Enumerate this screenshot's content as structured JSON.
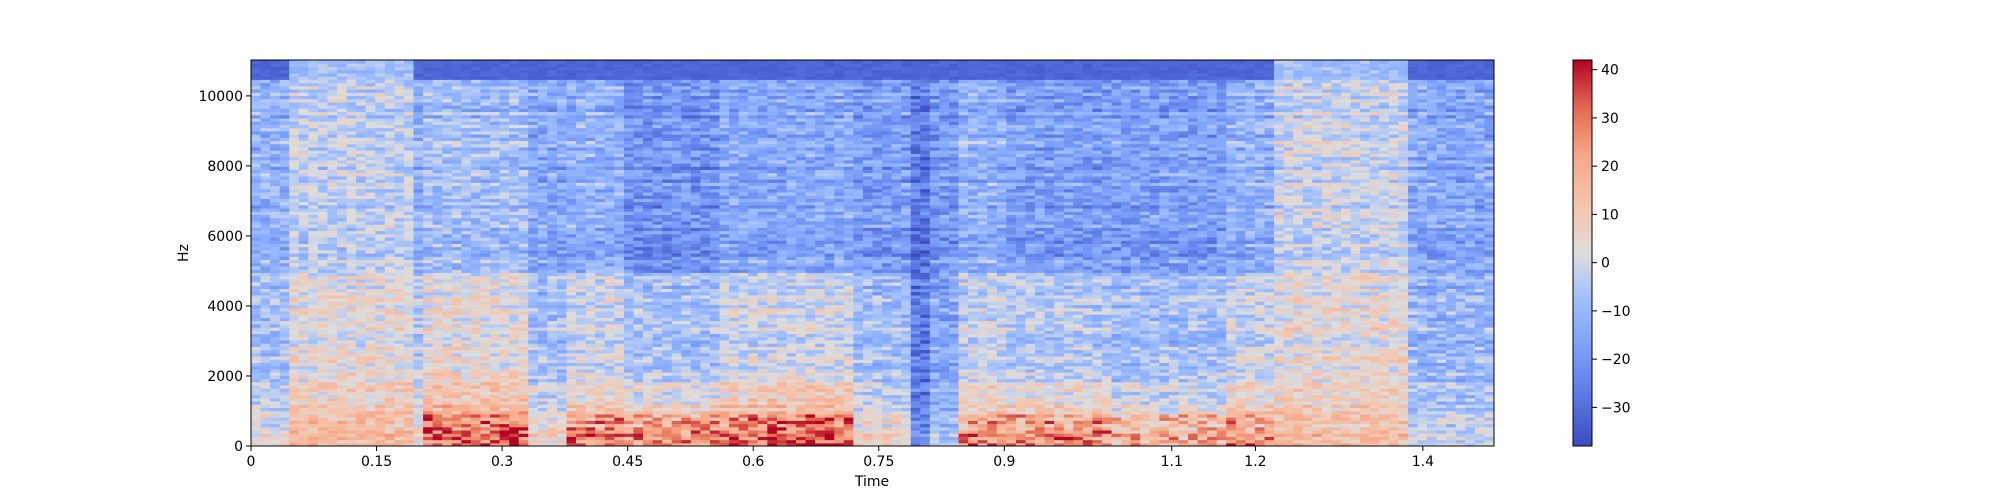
{
  "chart_data": {
    "type": "heatmap",
    "title": "",
    "xlabel": "Time",
    "ylabel": "Hz",
    "xlim": [
      0,
      1.485
    ],
    "ylim": [
      0,
      11025
    ],
    "x_ticks": [
      0,
      0.15,
      0.3,
      0.45,
      0.6,
      0.75,
      0.9,
      1.1,
      1.2,
      1.4
    ],
    "x_tick_labels": [
      "0",
      "0.15",
      "0.3",
      "0.45",
      "0.6",
      "0.75",
      "0.9",
      "1.1",
      "1.2",
      "1.4"
    ],
    "y_ticks": [
      0,
      2000,
      4000,
      6000,
      8000,
      10000
    ],
    "y_tick_labels": [
      "0",
      "2000",
      "4000",
      "6000",
      "8000",
      "10000"
    ],
    "colormap": "coolwarm",
    "colorbar": {
      "min": -38,
      "max": 42,
      "ticks": [
        -30,
        -20,
        -10,
        0,
        10,
        20,
        30,
        40
      ],
      "tick_labels": [
        "−30",
        "−20",
        "−10",
        "0",
        "10",
        "20",
        "30",
        "40"
      ]
    },
    "time_segments": [
      {
        "t0": 0.0,
        "t1": 0.05,
        "loudness": 0.45,
        "low_hot": 0.35
      },
      {
        "t0": 0.05,
        "t1": 0.19,
        "loudness": 0.72,
        "low_hot": 0.4
      },
      {
        "t0": 0.19,
        "t1": 0.21,
        "loudness": 0.45,
        "low_hot": 0.4
      },
      {
        "t0": 0.21,
        "t1": 0.33,
        "loudness": 0.55,
        "low_hot": 0.8
      },
      {
        "t0": 0.33,
        "t1": 0.38,
        "loudness": 0.38,
        "low_hot": 0.5
      },
      {
        "t0": 0.38,
        "t1": 0.45,
        "loudness": 0.45,
        "low_hot": 0.75
      },
      {
        "t0": 0.45,
        "t1": 0.56,
        "loudness": 0.22,
        "low_hot": 0.9
      },
      {
        "t0": 0.56,
        "t1": 0.72,
        "loudness": 0.38,
        "low_hot": 0.95
      },
      {
        "t0": 0.72,
        "t1": 0.79,
        "loudness": 0.3,
        "low_hot": 0.6
      },
      {
        "t0": 0.79,
        "t1": 0.815,
        "loudness": 0.02,
        "low_hot": 0.05
      },
      {
        "t0": 0.815,
        "t1": 0.84,
        "loudness": 0.25,
        "low_hot": 0.3
      },
      {
        "t0": 0.84,
        "t1": 0.9,
        "loudness": 0.45,
        "low_hot": 0.7
      },
      {
        "t0": 0.9,
        "t1": 1.03,
        "loudness": 0.3,
        "low_hot": 0.85
      },
      {
        "t0": 1.03,
        "t1": 1.16,
        "loudness": 0.3,
        "low_hot": 0.65
      },
      {
        "t0": 1.16,
        "t1": 1.22,
        "loudness": 0.45,
        "low_hot": 0.7
      },
      {
        "t0": 1.22,
        "t1": 1.38,
        "loudness": 0.75,
        "low_hot": 0.35
      },
      {
        "t0": 1.38,
        "t1": 1.485,
        "loudness": 0.38,
        "low_hot": 0.3
      }
    ]
  }
}
